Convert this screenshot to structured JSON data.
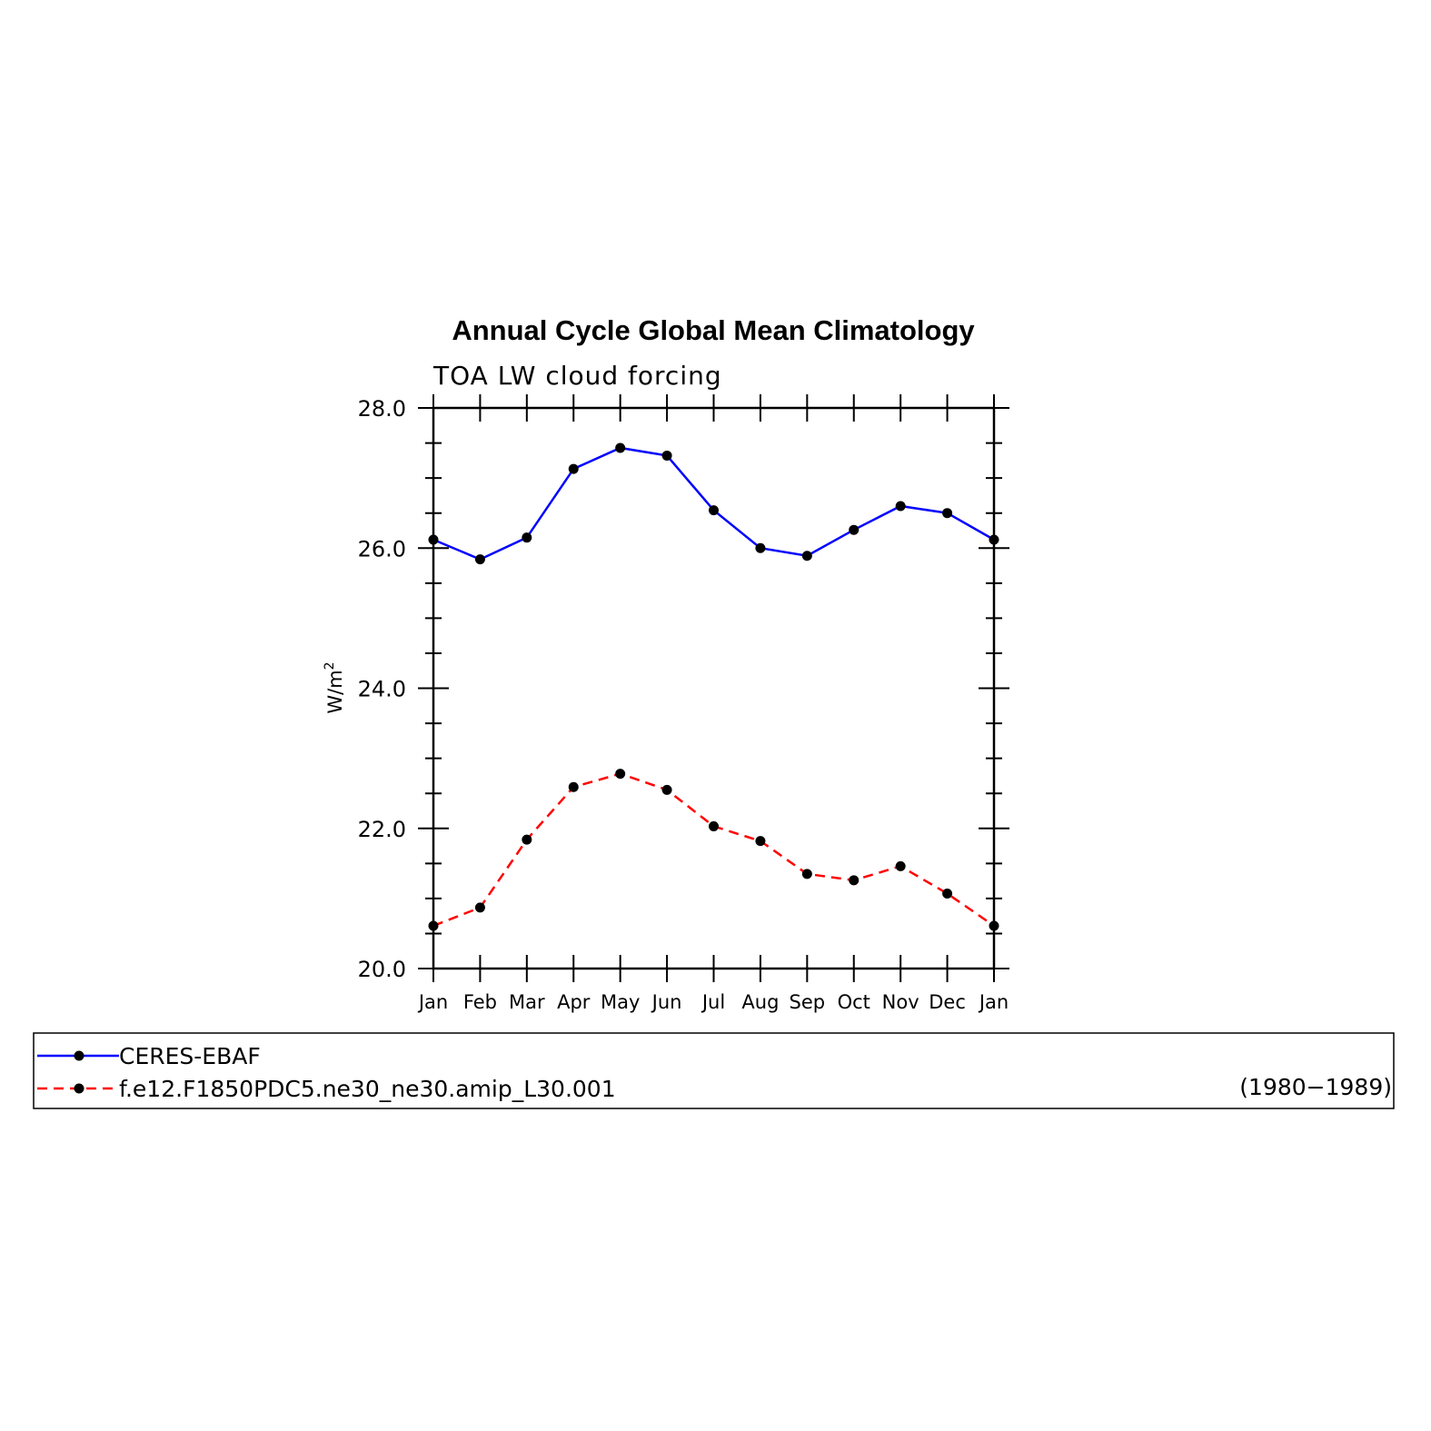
{
  "chart_data": {
    "type": "line",
    "title": "Annual Cycle Global Mean Climatology",
    "subtitle": "TOA LW cloud forcing",
    "ylabel": "W/m",
    "ylabel_superscript": "2",
    "categories": [
      "Jan",
      "Feb",
      "Mar",
      "Apr",
      "May",
      "Jun",
      "Jul",
      "Aug",
      "Sep",
      "Oct",
      "Nov",
      "Dec",
      "Jan"
    ],
    "ylim": [
      20.0,
      28.0
    ],
    "yticks": [
      "20.0",
      "22.0",
      "24.0",
      "26.0",
      "28.0"
    ],
    "yticks_values": [
      20,
      22,
      24,
      26,
      28
    ],
    "grid": false,
    "legend_position": "bottom",
    "series": [
      {
        "name": "CERES-EBAF",
        "color": "#0000ff",
        "dash": "solid",
        "values": [
          26.12,
          25.84,
          26.15,
          27.13,
          27.43,
          27.32,
          26.54,
          26.0,
          25.89,
          26.26,
          26.6,
          26.5,
          26.12
        ]
      },
      {
        "name": "f.e12.F1850PDC5.ne30_ne30.amip_L30.001",
        "color": "#ff0000",
        "dash": "dashed",
        "values": [
          20.61,
          20.87,
          21.84,
          22.59,
          22.78,
          22.55,
          22.03,
          21.82,
          21.35,
          21.26,
          21.46,
          21.07,
          20.61
        ]
      }
    ],
    "legend_note": "(1980−1989)"
  }
}
